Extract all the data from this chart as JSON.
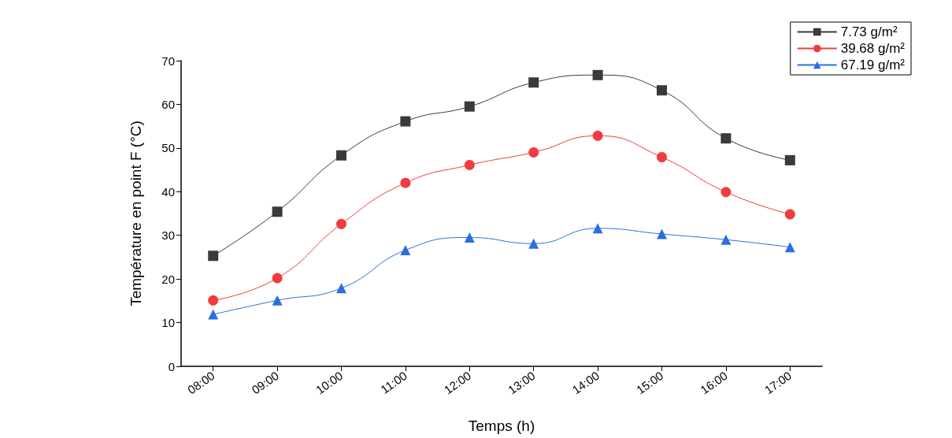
{
  "chart_data": {
    "type": "line",
    "xlabel": "Temps (h)",
    "ylabel": "Température en point F (°C)",
    "categories": [
      "08:00",
      "09:00",
      "10:00",
      "11:00",
      "12:00",
      "13:00",
      "14:00",
      "15:00",
      "16:00",
      "17:00"
    ],
    "series": [
      {
        "name": "7.73 g/m²",
        "color": "#3a3a3a",
        "marker": "square",
        "values": [
          25.3,
          35.4,
          48.3,
          56.1,
          59.5,
          65,
          66.7,
          63.2,
          52.2,
          47.2
        ]
      },
      {
        "name": "39.68 g/m²",
        "color": "#f03c3c",
        "marker": "circle",
        "values": [
          15.1,
          20.2,
          32.6,
          42,
          46.1,
          49,
          52.8,
          47.9,
          39.9,
          34.8
        ]
      },
      {
        "name": "67.19 g/m²",
        "color": "#2a6ee0",
        "marker": "triangle",
        "values": [
          11.9,
          15.1,
          17.9,
          26.6,
          29.5,
          28.1,
          31.6,
          30.3,
          29,
          27.3
        ]
      }
    ],
    "ylim": [
      0,
      70
    ],
    "yticks": [
      0,
      10,
      20,
      30,
      40,
      50,
      60,
      70
    ],
    "grid": false,
    "legend": "top right",
    "line_style": "solid"
  }
}
